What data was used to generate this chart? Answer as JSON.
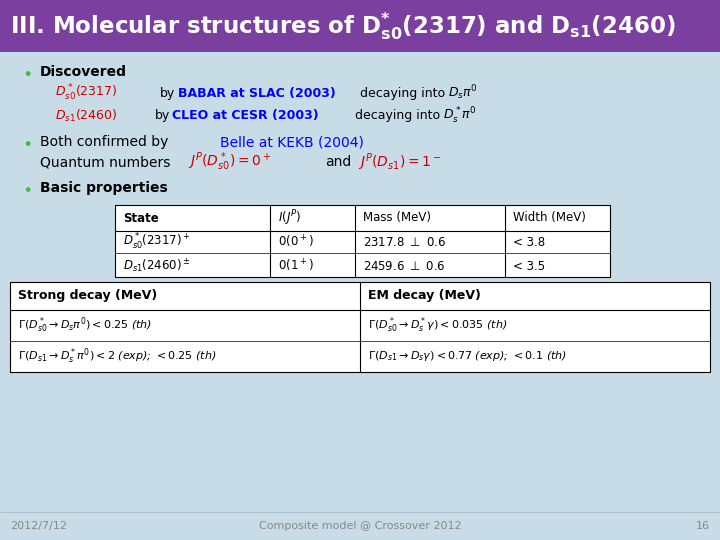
{
  "title_bg": "#7B3FA0",
  "title_fg": "white",
  "slide_bg": "#C8DCE8",
  "footer_date": "2012/7/12",
  "footer_center": "Composite model @ Crossover 2012",
  "footer_page": "16",
  "footer_fg": "#888888",
  "bullet_color": "#44BB44"
}
